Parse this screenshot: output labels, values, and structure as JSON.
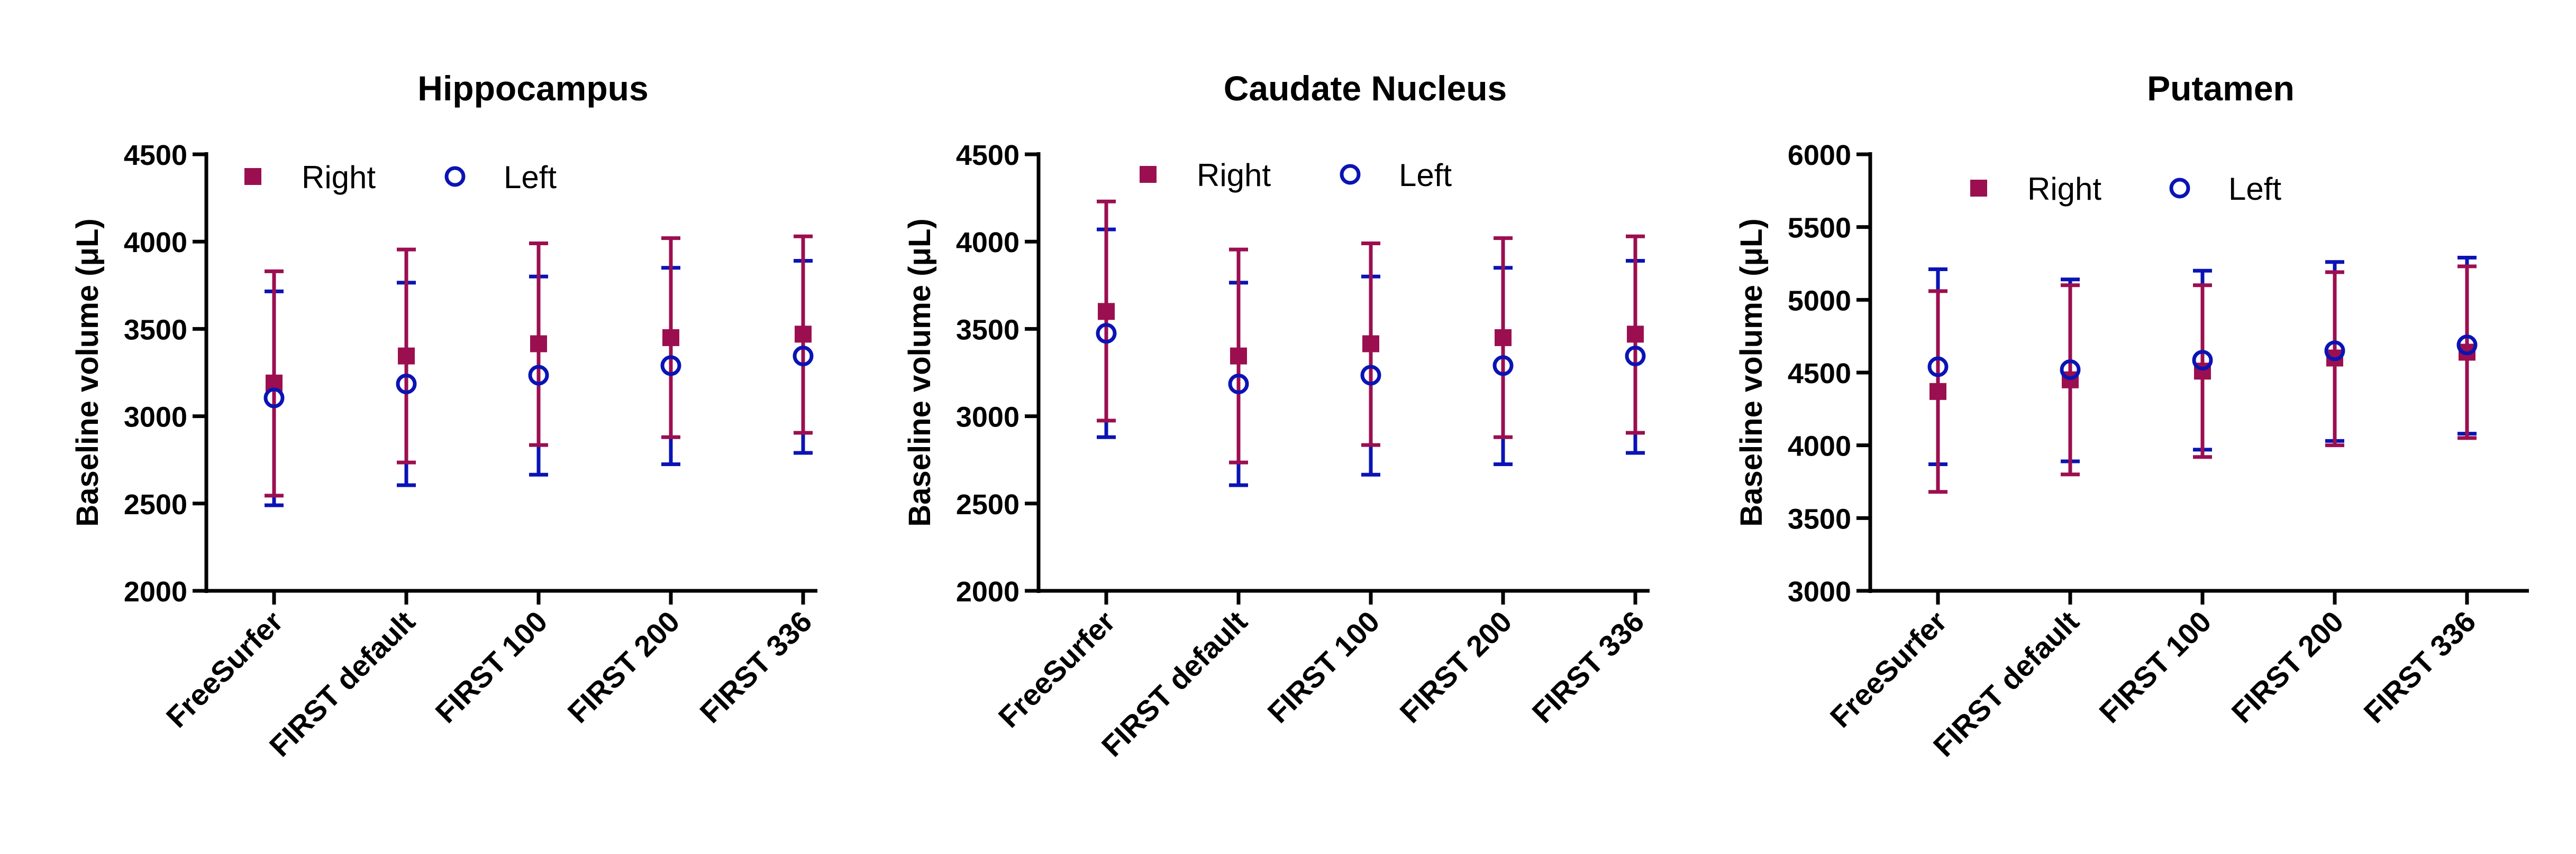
{
  "colors": {
    "right": "#9B0F50",
    "left": "#0A14B4",
    "axis": "#000000"
  },
  "chart_data": [
    {
      "type": "scatter",
      "title": "Hippocampus",
      "ylabel": "Baseline volume (μL)",
      "xlabel": "",
      "ylim": [
        2000,
        4500
      ],
      "yticks": [
        2000,
        2500,
        3000,
        3500,
        4000,
        4500
      ],
      "categories": [
        "FreeSurfer",
        "FIRST default",
        "FIRST 100",
        "FIRST 200",
        "FIRST 336"
      ],
      "legend": {
        "right_label": "Right",
        "left_label": "Left"
      },
      "series": [
        {
          "name": "Right",
          "values": [
            3190,
            3345,
            3415,
            3450,
            3470
          ],
          "err_low": [
            2545,
            2735,
            2835,
            2880,
            2905
          ],
          "err_high": [
            3830,
            3955,
            3990,
            4020,
            4030
          ]
        },
        {
          "name": "Left",
          "values": [
            3105,
            3185,
            3235,
            3290,
            3345
          ],
          "err_low": [
            2490,
            2605,
            2665,
            2725,
            2790
          ],
          "err_high": [
            3715,
            3765,
            3800,
            3850,
            3890
          ]
        }
      ]
    },
    {
      "type": "scatter",
      "title": "Caudate Nucleus",
      "ylabel": "Baseline volume (μL)",
      "xlabel": "",
      "ylim": [
        2000,
        4500
      ],
      "yticks": [
        2000,
        2500,
        3000,
        3500,
        4000,
        4500
      ],
      "categories": [
        "FreeSurfer",
        "FIRST default",
        "FIRST 100",
        "FIRST 200",
        "FIRST 336"
      ],
      "legend": {
        "right_label": "Right",
        "left_label": "Left"
      },
      "series": [
        {
          "name": "Right",
          "values": [
            3600,
            3345,
            3415,
            3450,
            3470
          ],
          "err_low": [
            2975,
            2735,
            2835,
            2880,
            2905
          ],
          "err_high": [
            4230,
            3955,
            3990,
            4020,
            4030
          ]
        },
        {
          "name": "Left",
          "values": [
            3475,
            3185,
            3235,
            3290,
            3345
          ],
          "err_low": [
            2880,
            2605,
            2665,
            2725,
            2790
          ],
          "err_high": [
            4070,
            3765,
            3800,
            3850,
            3890
          ]
        }
      ]
    },
    {
      "type": "scatter",
      "title": "Putamen",
      "ylabel": "Baseline volume (μL)",
      "xlabel": "",
      "ylim": [
        3000,
        6000
      ],
      "yticks": [
        3000,
        3500,
        4000,
        4500,
        5000,
        5500,
        6000
      ],
      "categories": [
        "FreeSurfer",
        "FIRST default",
        "FIRST 100",
        "FIRST 200",
        "FIRST 336"
      ],
      "legend": {
        "right_label": "Right",
        "left_label": "Left"
      },
      "series": [
        {
          "name": "Right",
          "values": [
            4370,
            4450,
            4510,
            4600,
            4640
          ],
          "err_low": [
            3680,
            3800,
            3920,
            4000,
            4050
          ],
          "err_high": [
            5060,
            5100,
            5100,
            5190,
            5230
          ]
        },
        {
          "name": "Left",
          "values": [
            4540,
            4520,
            4585,
            4650,
            4690
          ],
          "err_low": [
            3870,
            3890,
            3970,
            4030,
            4080
          ],
          "err_high": [
            5210,
            5140,
            5200,
            5260,
            5290
          ]
        }
      ]
    }
  ]
}
